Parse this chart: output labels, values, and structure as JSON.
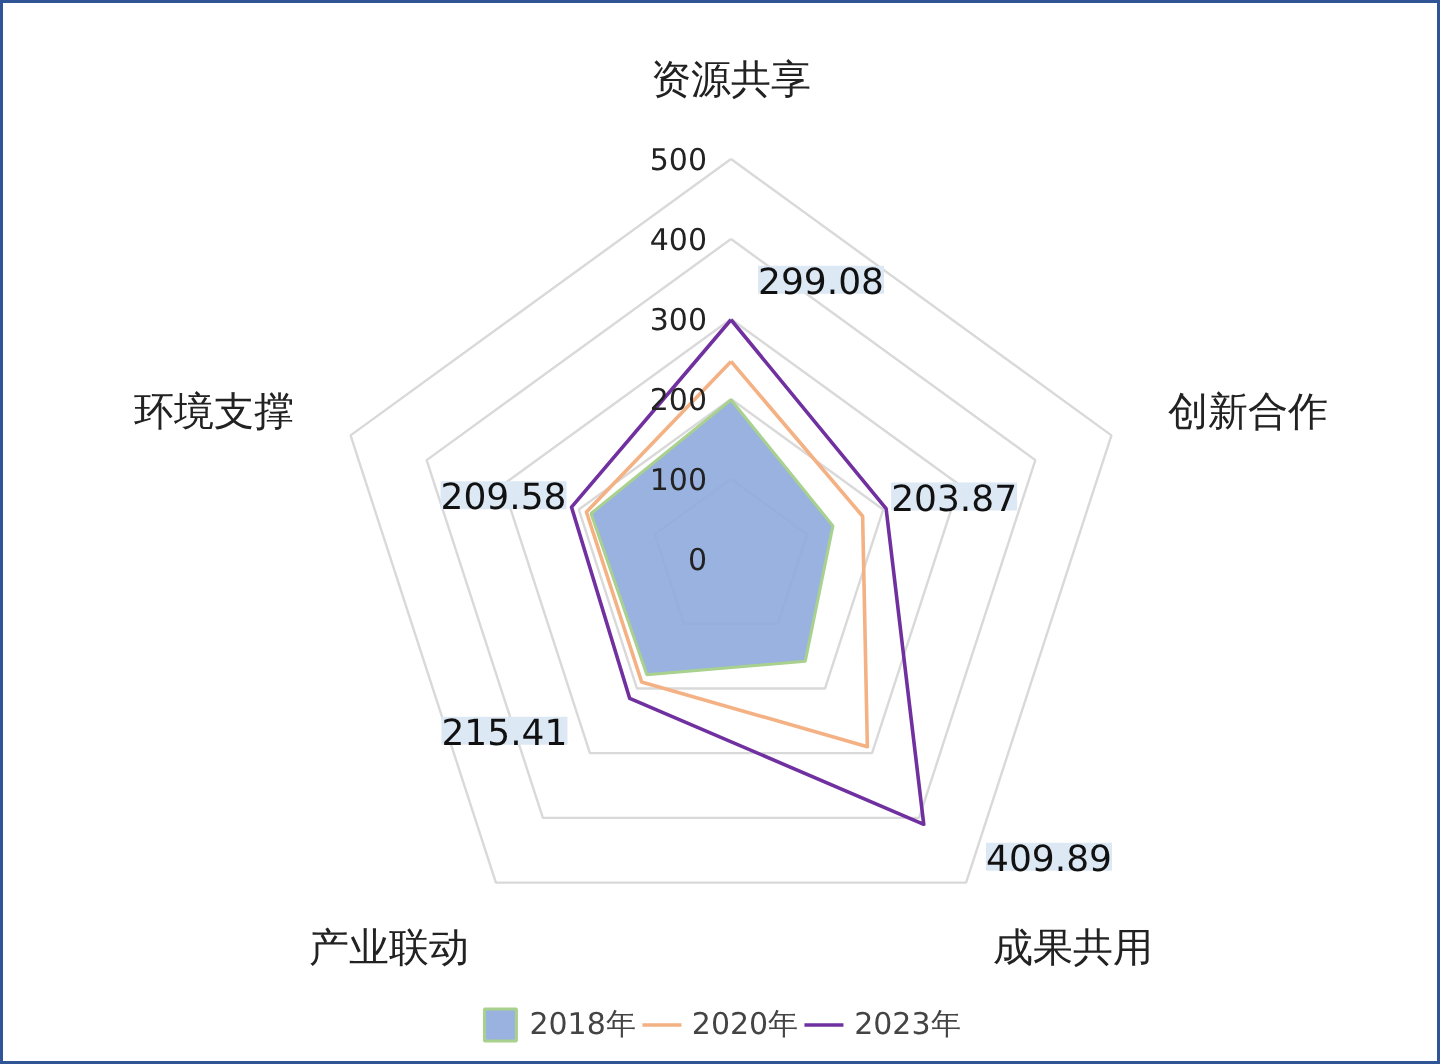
{
  "chart_data": {
    "type": "radar",
    "categories": [
      "资源共享",
      "创新合作",
      "成果共用",
      "产业联动",
      "环境支撑"
    ],
    "series": [
      {
        "name": "2018年",
        "type": "area",
        "color": "#8faadc",
        "values": [
          199,
          134,
          158,
          179,
          184
        ]
      },
      {
        "name": "2020年",
        "color": "#f4b183",
        "values": [
          247,
          173,
          290,
          190,
          190
        ]
      },
      {
        "name": "2023年",
        "color": "#7030a0",
        "values": [
          299.08,
          203.87,
          409.89,
          215.41,
          209.58
        ],
        "value_labels": [
          "299.08",
          "203.87",
          "409.89",
          "215.41",
          "209.58"
        ]
      }
    ],
    "ylim": [
      0,
      500
    ],
    "yticks": [
      0,
      100,
      200,
      300,
      400,
      500
    ],
    "grid": true,
    "legend": "bottom",
    "marker": "none"
  }
}
